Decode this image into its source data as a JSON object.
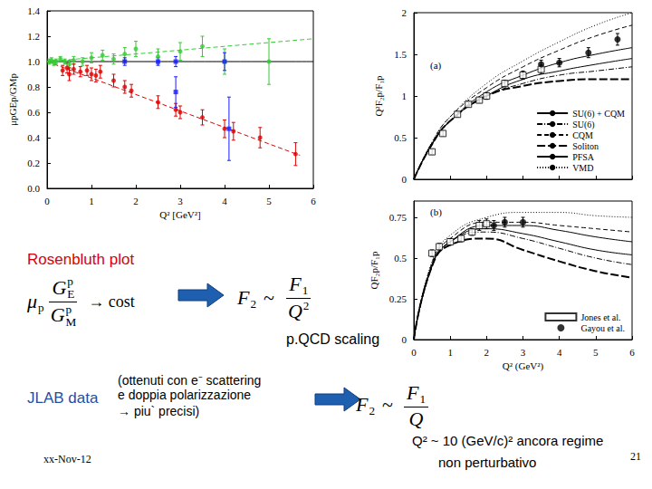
{
  "chart_data": [
    {
      "type": "scatter",
      "xlabel": "Q² [GeV²]",
      "ylabel": "μpGEp/GMp",
      "xlim": [
        0,
        6
      ],
      "xticks": [
        0,
        1,
        2,
        3,
        4,
        5,
        6
      ],
      "ylim": [
        0,
        1.4
      ],
      "yticks": [
        {
          "value": 0,
          "label": "0.0"
        },
        0.2,
        0.4,
        0.6,
        0.8,
        {
          "value": 1,
          "label": "1.0"
        },
        1.2,
        1.4
      ],
      "grid": false,
      "series": [
        {
          "type": "line",
          "color": "#000000",
          "line_style": "solid",
          "marker": "none",
          "x": [
            0,
            6
          ],
          "values": [
            1,
            1
          ]
        },
        {
          "type": "line",
          "color": "#33cc33",
          "line_style": "dashed",
          "marker": "none",
          "x": [
            0,
            6
          ],
          "values": [
            1.0,
            1.18
          ]
        },
        {
          "type": "line",
          "color": "#dd0000",
          "line_style": "dashed",
          "marker": "none",
          "x": [
            0,
            5.7
          ],
          "values": [
            1.0,
            0.26
          ]
        },
        {
          "type": "scatter",
          "color": "#33cc33",
          "marker": "circle",
          "x": [
            0.05,
            0.1,
            0.15,
            0.2,
            0.3,
            0.4,
            0.5,
            0.6,
            0.8,
            1.0,
            1.25,
            1.5,
            1.75,
            2.0,
            2.5,
            3.0,
            3.5,
            4.0,
            5.0
          ],
          "values": [
            1.0,
            1.01,
            0.99,
            1.0,
            1.02,
            1.0,
            0.98,
            1.01,
            1.0,
            1.03,
            1.05,
            1.02,
            1.06,
            1.1,
            1.04,
            1.08,
            1.12,
            1.0,
            1.0
          ],
          "errors": [
            0.02,
            0.02,
            0.02,
            0.02,
            0.02,
            0.02,
            0.03,
            0.03,
            0.03,
            0.04,
            0.04,
            0.04,
            0.05,
            0.06,
            0.06,
            0.07,
            0.08,
            0.1,
            0.18
          ]
        },
        {
          "type": "scatter",
          "color": "#dd0000",
          "marker": "circle",
          "x": [
            0.35,
            0.45,
            0.5,
            0.6,
            0.75,
            0.9,
            1.0,
            1.1,
            1.2,
            1.5,
            1.75,
            1.9,
            2.5,
            2.9,
            3.0,
            3.5,
            4.0,
            4.2,
            4.8,
            5.6
          ],
          "values": [
            0.93,
            0.95,
            0.9,
            0.94,
            0.92,
            0.93,
            0.9,
            0.89,
            0.92,
            0.85,
            0.8,
            0.77,
            0.68,
            0.62,
            0.6,
            0.56,
            0.47,
            0.45,
            0.4,
            0.27
          ],
          "errors": [
            0.04,
            0.04,
            0.05,
            0.04,
            0.04,
            0.04,
            0.05,
            0.05,
            0.05,
            0.05,
            0.05,
            0.05,
            0.05,
            0.05,
            0.05,
            0.06,
            0.07,
            0.07,
            0.08,
            0.09
          ]
        },
        {
          "type": "scatter",
          "color": "#1a1aff",
          "marker": "square",
          "x": [
            1.75,
            2.5,
            2.9,
            4.0,
            2.9,
            4.1
          ],
          "values": [
            1.0,
            1.0,
            1.0,
            1.0,
            0.76,
            0.47
          ],
          "errors": [
            0.03,
            0.03,
            0.04,
            0.07,
            0.12,
            0.25
          ]
        }
      ]
    },
    {
      "type": "line",
      "ylabel": "Q²F₂p/F₁p",
      "annotation": "(a)",
      "xlim": [
        0,
        6
      ],
      "xticks": [
        0,
        1,
        2,
        3,
        4,
        5,
        6
      ],
      "ylim": [
        0,
        2
      ],
      "yticks": [
        0,
        0.5,
        1,
        1.5,
        2
      ],
      "tick_labels": "y",
      "grid": false,
      "legend": "lower right",
      "series": [
        {
          "name": "SU(6) + CQM",
          "type": "line",
          "color": "#000000",
          "line_style": "solid",
          "marker": "none",
          "x": [
            0,
            0.5,
            1,
            2,
            3,
            4,
            5,
            6
          ],
          "values": [
            0,
            0.42,
            0.7,
            1.0,
            1.2,
            1.3,
            1.38,
            1.45
          ]
        },
        {
          "name": "SU(6)",
          "type": "line",
          "color": "#000000",
          "line_style": "dashdot",
          "marker": "none",
          "x": [
            0,
            0.5,
            1,
            2,
            3,
            4,
            5,
            6
          ],
          "values": [
            0,
            0.42,
            0.7,
            1.0,
            1.15,
            1.25,
            1.3,
            1.35
          ]
        },
        {
          "name": "CQM",
          "type": "line",
          "color": "#000000",
          "line_style": "dashed",
          "marker": "none",
          "x": [
            0,
            0.5,
            1,
            2,
            3,
            4,
            5,
            6
          ],
          "values": [
            0,
            0.44,
            0.75,
            1.1,
            1.35,
            1.55,
            1.72,
            1.85
          ]
        },
        {
          "name": "Soliton",
          "type": "line",
          "color": "#000000",
          "line_style": "longdash",
          "marker": "none",
          "x": [
            0,
            0.5,
            1,
            2,
            3,
            4,
            5,
            6
          ],
          "values": [
            0,
            0.42,
            0.7,
            1.0,
            1.12,
            1.18,
            1.2,
            1.2
          ]
        },
        {
          "name": "PFSA",
          "type": "line",
          "color": "#000000",
          "line_style": "solid",
          "marker": "none",
          "x": [
            0,
            0.5,
            1,
            2,
            3,
            4,
            5,
            6
          ],
          "values": [
            0,
            0.43,
            0.7,
            1.05,
            1.25,
            1.4,
            1.5,
            1.58
          ]
        },
        {
          "name": "VMD",
          "type": "line",
          "color": "#000000",
          "line_style": "dotted",
          "marker": "none",
          "x": [
            0,
            0.5,
            1,
            2,
            3,
            4,
            5,
            6
          ],
          "values": [
            0,
            0.45,
            0.75,
            1.15,
            1.42,
            1.65,
            1.85,
            2.0
          ]
        },
        {
          "type": "scatter",
          "color": "#000000",
          "marker": "open_square",
          "x": [
            0.5,
            0.8,
            1.2,
            1.5,
            1.8,
            2.0,
            2.5,
            3.0,
            3.5
          ],
          "values": [
            0.33,
            0.55,
            0.78,
            0.9,
            0.95,
            1.0,
            1.15,
            1.25,
            1.32
          ],
          "errors": [
            0.03,
            0.03,
            0.03,
            0.03,
            0.03,
            0.04,
            0.04,
            0.05,
            0.05
          ]
        },
        {
          "type": "scatter",
          "color": "#000000",
          "marker": "circle",
          "x": [
            3.5,
            4.0,
            4.8,
            5.6
          ],
          "values": [
            1.38,
            1.4,
            1.52,
            1.68
          ],
          "errors": [
            0.05,
            0.05,
            0.06,
            0.07
          ]
        }
      ]
    },
    {
      "type": "line",
      "xlabel": "Q² (GeV²)",
      "ylabel": "QF₂p/F₁p",
      "annotation": "(b)",
      "xlim": [
        0,
        6
      ],
      "xticks": [
        0,
        1,
        2,
        3,
        4,
        5,
        6
      ],
      "ylim": [
        0,
        0.85
      ],
      "yticks": [
        0,
        0.25,
        0.5,
        0.75
      ],
      "grid": false,
      "legend": "lower right",
      "series": [
        {
          "type": "line",
          "color": "#000000",
          "line_style": "solid",
          "marker": "none",
          "x": [
            0,
            0.5,
            1,
            2,
            3,
            4,
            5,
            6
          ],
          "values": [
            0,
            0.45,
            0.6,
            0.68,
            0.65,
            0.6,
            0.55,
            0.52
          ]
        },
        {
          "type": "line",
          "color": "#000000",
          "line_style": "dashdot",
          "marker": "none",
          "x": [
            0,
            0.5,
            1,
            2,
            3,
            4,
            5,
            6
          ],
          "values": [
            0,
            0.45,
            0.6,
            0.66,
            0.62,
            0.56,
            0.5,
            0.46
          ]
        },
        {
          "type": "line",
          "color": "#000000",
          "line_style": "dashed",
          "marker": "none",
          "x": [
            0,
            0.5,
            1,
            2,
            3,
            4,
            5,
            6
          ],
          "values": [
            0,
            0.47,
            0.62,
            0.72,
            0.72,
            0.7,
            0.68,
            0.66
          ]
        },
        {
          "type": "line",
          "color": "#000000",
          "line_style": "longdash",
          "marker": "none",
          "x": [
            0,
            0.5,
            1,
            2,
            3,
            4,
            5,
            6
          ],
          "values": [
            0,
            0.45,
            0.58,
            0.62,
            0.55,
            0.48,
            0.42,
            0.38
          ]
        },
        {
          "type": "line",
          "color": "#000000",
          "line_style": "solid",
          "marker": "none",
          "x": [
            0,
            0.5,
            1,
            2,
            3,
            4,
            5,
            6
          ],
          "values": [
            0,
            0.46,
            0.6,
            0.7,
            0.7,
            0.67,
            0.63,
            0.6
          ]
        },
        {
          "type": "line",
          "color": "#000000",
          "line_style": "dotted",
          "marker": "none",
          "x": [
            0,
            0.5,
            1,
            2,
            3,
            4,
            5,
            6
          ],
          "values": [
            0,
            0.48,
            0.64,
            0.75,
            0.78,
            0.78,
            0.76,
            0.75
          ]
        },
        {
          "name": "Jones et al.",
          "type": "scatter",
          "color": "#000000",
          "marker": "open_square",
          "x": [
            0.5,
            0.7,
            1.0,
            1.3,
            1.6,
            1.8,
            2.0
          ],
          "values": [
            0.53,
            0.57,
            0.6,
            0.62,
            0.66,
            0.7,
            0.71
          ],
          "errors": [
            0.02,
            0.02,
            0.02,
            0.02,
            0.02,
            0.03,
            0.03
          ]
        },
        {
          "name": "Gayou et al.",
          "type": "scatter",
          "color": "#000000",
          "marker": "circle",
          "x": [
            2.2,
            2.5,
            3.0
          ],
          "values": [
            0.7,
            0.72,
            0.72
          ],
          "errors": [
            0.03,
            0.03,
            0.03
          ]
        }
      ]
    }
  ],
  "slide": {
    "rosenbluth": "Rosenbluth plot",
    "formula1": {
      "lhs": "μ",
      "lhs_sub": "p",
      "num": "G",
      "num_sub": "E",
      "num_sup": "p",
      "den": "G",
      "den_sub": "M",
      "den_sup": "p",
      "rhs": "→ cost"
    },
    "formula2": {
      "lhs": "F",
      "lhs_sub": "2",
      "rel": "~",
      "num": "F",
      "num_sub": "1",
      "den": "Q",
      "den_sup": "2"
    },
    "scaling": "p.QCD scaling",
    "jlab": "JLAB data",
    "note": [
      "(ottenuti con e⁻ scattering",
      "e doppia polarizzazione",
      "→ piu` precisi)"
    ],
    "formula3": {
      "lhs": "F",
      "lhs_sub": "2",
      "rel": "~",
      "num": "F",
      "num_sub": "1",
      "den": "Q"
    },
    "conclusion": [
      "Q² ~ 10 (GeV/c)² ancora regime",
      "non perturbativo"
    ],
    "date": "xx-Nov-12",
    "page": "21"
  }
}
